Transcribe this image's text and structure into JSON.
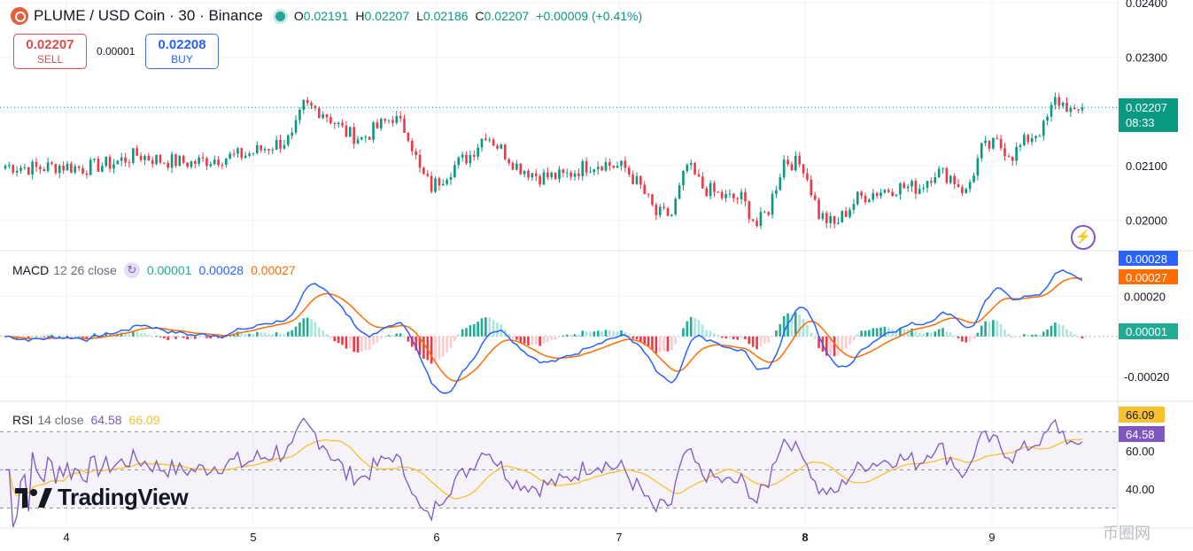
{
  "header": {
    "symbol_title": "PLUME / USD Coin · 30 · Binance",
    "ohlc": [
      {
        "key": "O",
        "value": "0.02191"
      },
      {
        "key": "H",
        "value": "0.02207"
      },
      {
        "key": "L",
        "value": "0.02186"
      },
      {
        "key": "C",
        "value": "0.02207"
      }
    ],
    "change": "+0.00009 (+0.41%)"
  },
  "trade": {
    "sell_price": "0.02207",
    "sell_label": "SELL",
    "spread": "0.00001",
    "buy_price": "0.02208",
    "buy_label": "BUY"
  },
  "colors": {
    "up": "#089981",
    "down": "#f23645",
    "macd": "#2962ff",
    "signal": "#ff6d00",
    "rsi": "#7e57c2",
    "rsi_ma": "#f7c12f"
  },
  "icons": [
    "plume-logo-icon",
    "market-status-icon",
    "reload-icon",
    "lightning-icon",
    "tradingview-logo-icon"
  ],
  "macd_label": {
    "name": "MACD",
    "settings": "12 26 close",
    "hist": "0.00001",
    "macd": "0.00028",
    "signal": "0.00027"
  },
  "rsi_label": {
    "name": "RSI",
    "settings": "14 close",
    "rsi": "64.58",
    "ma": "66.09"
  },
  "price_tag": {
    "price": "0.02207",
    "countdown": "08:33"
  },
  "macd_tags": {
    "macd": "0.00028",
    "signal": "0.00027",
    "hist": "0.00001"
  },
  "rsi_tags": {
    "ma": "66.09",
    "rsi": "64.58"
  },
  "branding": {
    "logo_text": "TradingView",
    "watermark": "币圈网"
  },
  "chart_data": [
    {
      "type": "candlestick",
      "title": "PLUME / USD Coin · 30 · Binance",
      "ylim": [
        0.01945,
        0.02405
      ],
      "yticks": [
        "0.02400",
        "0.02300",
        "0.02100",
        "0.02000"
      ],
      "x_ticks": [
        "4",
        "5",
        "6",
        "7",
        "8",
        "9"
      ],
      "last_price": 0.02207,
      "anchors_close": [
        [
          0,
          0.021
        ],
        [
          8,
          0.02095
        ],
        [
          14,
          0.021
        ],
        [
          20,
          0.02095
        ],
        [
          28,
          0.02105
        ],
        [
          34,
          0.0212
        ],
        [
          40,
          0.0211
        ],
        [
          48,
          0.02105
        ],
        [
          56,
          0.02115
        ],
        [
          62,
          0.0212
        ],
        [
          68,
          0.02135
        ],
        [
          74,
          0.0215
        ],
        [
          77,
          0.0221
        ],
        [
          82,
          0.022
        ],
        [
          88,
          0.0216
        ],
        [
          92,
          0.0215
        ],
        [
          97,
          0.02175
        ],
        [
          100,
          0.0219
        ],
        [
          104,
          0.0216
        ],
        [
          107,
          0.0209
        ],
        [
          110,
          0.0206
        ],
        [
          116,
          0.021
        ],
        [
          120,
          0.0212
        ],
        [
          124,
          0.0216
        ],
        [
          128,
          0.0213
        ],
        [
          132,
          0.021
        ],
        [
          138,
          0.0208
        ],
        [
          144,
          0.0208
        ],
        [
          150,
          0.021
        ],
        [
          154,
          0.02105
        ],
        [
          160,
          0.02095
        ],
        [
          164,
          0.0206
        ],
        [
          168,
          0.0201
        ],
        [
          172,
          0.0201
        ],
        [
          176,
          0.021
        ],
        [
          180,
          0.0206
        ],
        [
          186,
          0.0204
        ],
        [
          190,
          0.0204
        ],
        [
          194,
          0.0199
        ],
        [
          197,
          0.0202
        ],
        [
          201,
          0.0211
        ],
        [
          206,
          0.021
        ],
        [
          210,
          0.0201
        ],
        [
          214,
          0.0199
        ],
        [
          220,
          0.0204
        ],
        [
          224,
          0.0205
        ],
        [
          230,
          0.0206
        ],
        [
          236,
          0.0206
        ],
        [
          240,
          0.0209
        ],
        [
          244,
          0.0208
        ],
        [
          248,
          0.0205
        ],
        [
          252,
          0.0213
        ],
        [
          256,
          0.0214
        ],
        [
          260,
          0.0212
        ],
        [
          264,
          0.0215
        ],
        [
          268,
          0.0217
        ],
        [
          271,
          0.0222
        ],
        [
          274,
          0.0221
        ],
        [
          276,
          0.0219
        ],
        [
          278,
          0.02207
        ]
      ]
    },
    {
      "type": "line",
      "name": "MACD 12 26 close",
      "ylim": [
        -0.00032,
        0.00042
      ],
      "yticks": [
        "0.00020",
        "-0.00020"
      ],
      "series": [
        {
          "name": "MACD",
          "last": 0.00028
        },
        {
          "name": "Signal",
          "last": 0.00027
        },
        {
          "name": "Histogram",
          "last": 1e-05
        }
      ]
    },
    {
      "type": "line",
      "name": "RSI 14 close",
      "ylim": [
        20,
        85
      ],
      "yticks": [
        "60.00",
        "40.00"
      ],
      "bands": [
        30,
        70
      ],
      "series": [
        {
          "name": "RSI",
          "last": 64.58
        },
        {
          "name": "RSI MA",
          "last": 66.09
        }
      ]
    }
  ]
}
